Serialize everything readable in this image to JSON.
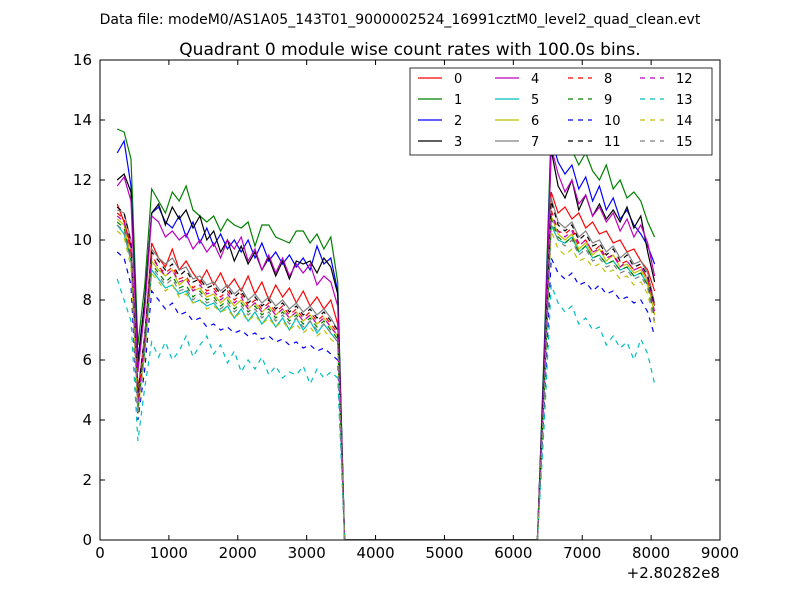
{
  "figure": {
    "suptitle": "Data file: modeM0/AS1A05_143T01_9000002524_16991cztM0_level2_quad_clean.evt"
  },
  "chart_data": {
    "type": "line",
    "title": "Quadrant 0 module wise count rates with 100.0s bins.",
    "xlabel": "",
    "ylabel": "",
    "x_offset_label": "+2.80282e8",
    "xlim": [
      0,
      9000
    ],
    "ylim": [
      0,
      16
    ],
    "xticks": [
      0,
      1000,
      2000,
      3000,
      4000,
      5000,
      6000,
      7000,
      8000,
      9000
    ],
    "yticks": [
      0,
      2,
      4,
      6,
      8,
      10,
      12,
      14,
      16
    ],
    "grid": false,
    "legend_position": "top-right",
    "legend_columns": 4,
    "x": [
      250,
      350,
      450,
      550,
      650,
      750,
      850,
      950,
      1050,
      1150,
      1250,
      1350,
      1450,
      1550,
      1650,
      1750,
      1850,
      1950,
      2050,
      2150,
      2250,
      2350,
      2450,
      2550,
      2650,
      2750,
      2850,
      2950,
      3050,
      3150,
      3250,
      3350,
      3450,
      3550,
      6350,
      6450,
      6550,
      6650,
      6750,
      6850,
      6950,
      7050,
      7150,
      7250,
      7350,
      7450,
      7550,
      7650,
      7750,
      7850,
      7950,
      8050
    ],
    "series": [
      {
        "name": "0",
        "color": "#ff0000",
        "style": "solid",
        "values": [
          11.2,
          10.6,
          9.8,
          5.0,
          6.8,
          9.9,
          9.4,
          9.1,
          9.7,
          9.0,
          9.3,
          8.9,
          8.6,
          9.0,
          8.5,
          8.9,
          8.4,
          8.7,
          8.3,
          8.8,
          8.2,
          8.6,
          8.0,
          8.5,
          8.1,
          8.4,
          7.9,
          8.3,
          7.8,
          8.1,
          7.7,
          8.0,
          7.2,
          0,
          0,
          5.5,
          11.6,
          10.9,
          11.1,
          10.7,
          10.9,
          10.4,
          10.6,
          10.2,
          10.3,
          9.9,
          10.0,
          9.6,
          9.7,
          9.3,
          9.0,
          8.3
        ]
      },
      {
        "name": "1",
        "color": "#008000",
        "style": "solid",
        "values": [
          13.7,
          13.6,
          12.7,
          6.5,
          8.5,
          11.7,
          11.3,
          10.9,
          11.6,
          11.3,
          11.8,
          11.0,
          10.8,
          10.6,
          10.8,
          10.3,
          10.7,
          10.5,
          10.4,
          10.6,
          9.8,
          10.5,
          10.5,
          10.1,
          10.0,
          9.9,
          10.3,
          10.3,
          9.9,
          10.2,
          9.7,
          10.1,
          8.6,
          0,
          0,
          6.5,
          13.8,
          13.1,
          13.2,
          13.0,
          12.5,
          12.9,
          12.3,
          12.0,
          12.5,
          11.7,
          12.0,
          11.4,
          11.6,
          11.3,
          10.6,
          10.1
        ]
      },
      {
        "name": "2",
        "color": "#0000ff",
        "style": "solid",
        "values": [
          12.9,
          13.3,
          11.8,
          6.0,
          8.0,
          10.9,
          11.1,
          10.6,
          10.4,
          10.8,
          10.1,
          10.6,
          9.9,
          10.4,
          9.8,
          10.2,
          9.7,
          10.0,
          9.6,
          10.0,
          9.4,
          9.9,
          9.3,
          9.6,
          9.2,
          9.5,
          9.1,
          9.4,
          9.0,
          9.8,
          9.2,
          9.4,
          8.3,
          0,
          0,
          6.2,
          13.4,
          12.6,
          12.2,
          12.5,
          11.7,
          12.1,
          11.3,
          11.8,
          11.0,
          11.4,
          10.7,
          11.0,
          10.5,
          10.2,
          9.8,
          9.2
        ]
      },
      {
        "name": "3",
        "color": "#000000",
        "style": "solid",
        "values": [
          12.0,
          12.2,
          11.6,
          5.9,
          8.0,
          10.9,
          11.2,
          10.5,
          11.1,
          10.7,
          11.0,
          10.4,
          10.8,
          10.0,
          10.3,
          9.6,
          10.0,
          9.3,
          9.8,
          9.2,
          9.6,
          9.0,
          9.4,
          8.8,
          9.3,
          8.7,
          9.3,
          9.2,
          9.3,
          8.9,
          9.4,
          9.1,
          8.2,
          0,
          0,
          6.0,
          13.0,
          11.8,
          11.4,
          12.0,
          11.0,
          11.5,
          10.8,
          11.2,
          10.7,
          11.0,
          10.6,
          11.1,
          10.4,
          10.8,
          9.6,
          8.6
        ]
      },
      {
        "name": "4",
        "color": "#bf00bf",
        "style": "solid",
        "values": [
          11.8,
          12.1,
          11.3,
          5.6,
          7.7,
          10.8,
          10.6,
          10.1,
          10.3,
          10.0,
          10.2,
          9.7,
          10.0,
          9.6,
          9.9,
          9.4,
          10.0,
          9.7,
          10.1,
          9.3,
          9.7,
          9.0,
          9.5,
          8.9,
          9.4,
          8.8,
          9.2,
          8.9,
          9.2,
          8.5,
          8.8,
          8.6,
          7.8,
          0,
          0,
          5.8,
          13.1,
          12.2,
          11.6,
          12.0,
          11.2,
          11.5,
          10.8,
          11.1,
          10.6,
          10.9,
          10.3,
          10.7,
          10.1,
          10.5,
          9.9,
          8.8
        ]
      },
      {
        "name": "5",
        "color": "#00bfbf",
        "style": "solid",
        "values": [
          10.5,
          10.2,
          9.3,
          4.5,
          6.3,
          9.0,
          8.7,
          8.4,
          8.5,
          8.2,
          8.3,
          7.9,
          8.0,
          7.8,
          7.9,
          7.6,
          7.8,
          7.4,
          7.7,
          7.3,
          7.6,
          7.2,
          7.5,
          7.1,
          7.4,
          7.0,
          7.4,
          7.0,
          7.3,
          6.9,
          7.2,
          6.9,
          6.6,
          0,
          0,
          5.0,
          10.5,
          10.0,
          9.9,
          10.1,
          9.6,
          9.8,
          9.4,
          9.5,
          9.2,
          9.3,
          9.0,
          9.1,
          8.8,
          8.9,
          8.5,
          7.8
        ]
      },
      {
        "name": "6",
        "color": "#bfbf00",
        "style": "solid",
        "values": [
          10.7,
          10.5,
          9.4,
          4.2,
          6.5,
          9.3,
          9.0,
          8.8,
          9.0,
          8.5,
          8.7,
          8.3,
          8.4,
          8.1,
          8.2,
          7.9,
          8.1,
          7.8,
          8.0,
          7.7,
          7.9,
          7.6,
          7.8,
          7.5,
          7.7,
          7.4,
          7.6,
          7.3,
          7.5,
          7.2,
          7.4,
          7.1,
          6.8,
          0,
          0,
          5.1,
          10.8,
          10.2,
          10.0,
          10.2,
          9.7,
          9.9,
          9.5,
          9.7,
          9.3,
          9.5,
          9.1,
          9.2,
          8.9,
          9.0,
          8.6,
          7.5
        ]
      },
      {
        "name": "7",
        "color": "#808080",
        "style": "solid",
        "values": [
          11.0,
          10.9,
          10.0,
          4.8,
          6.9,
          9.7,
          9.4,
          9.2,
          9.4,
          9.0,
          9.1,
          8.7,
          8.8,
          8.5,
          8.6,
          8.3,
          8.5,
          8.2,
          8.4,
          8.0,
          8.2,
          7.9,
          8.1,
          7.8,
          8.0,
          7.7,
          7.9,
          7.6,
          7.8,
          7.5,
          7.7,
          7.4,
          7.0,
          0,
          0,
          5.3,
          11.4,
          10.6,
          10.4,
          10.6,
          10.1,
          10.3,
          9.9,
          10.0,
          9.6,
          9.8,
          9.4,
          9.6,
          9.2,
          9.3,
          8.9,
          7.9
        ]
      },
      {
        "name": "8",
        "color": "#ff0000",
        "style": "dashed",
        "values": [
          10.9,
          10.7,
          9.6,
          4.7,
          6.6,
          9.5,
          9.1,
          8.9,
          9.1,
          8.7,
          8.8,
          8.4,
          8.6,
          8.3,
          8.4,
          8.1,
          8.3,
          8.0,
          8.2,
          7.8,
          8.0,
          7.7,
          7.9,
          7.6,
          7.8,
          7.5,
          7.7,
          7.4,
          7.6,
          7.3,
          7.5,
          7.2,
          6.9,
          0,
          0,
          5.2,
          11.0,
          10.3,
          10.2,
          10.4,
          9.9,
          10.0,
          9.6,
          9.8,
          9.4,
          9.5,
          9.2,
          9.3,
          9.0,
          9.1,
          8.7,
          7.8
        ]
      },
      {
        "name": "9",
        "color": "#008000",
        "style": "dashed",
        "values": [
          10.6,
          10.4,
          9.4,
          4.4,
          6.4,
          9.2,
          8.9,
          8.6,
          8.8,
          8.4,
          8.5,
          8.1,
          8.3,
          8.0,
          8.1,
          7.8,
          8.0,
          7.7,
          7.9,
          7.6,
          7.8,
          7.5,
          7.7,
          7.4,
          7.6,
          7.3,
          7.5,
          7.2,
          7.4,
          7.1,
          7.3,
          7.0,
          6.7,
          0,
          0,
          5.0,
          10.7,
          10.1,
          9.9,
          10.1,
          9.6,
          9.8,
          9.4,
          9.5,
          9.2,
          9.3,
          9.0,
          9.1,
          8.8,
          8.9,
          8.5,
          7.4
        ]
      },
      {
        "name": "10",
        "color": "#0000ff",
        "style": "dashed",
        "values": [
          9.6,
          9.4,
          8.5,
          4.0,
          5.7,
          8.3,
          8.0,
          7.7,
          7.9,
          7.5,
          7.6,
          7.3,
          7.4,
          7.1,
          7.2,
          7.0,
          7.1,
          6.9,
          7.0,
          6.8,
          6.9,
          6.7,
          6.8,
          6.6,
          6.7,
          6.5,
          6.6,
          6.4,
          6.5,
          6.3,
          6.4,
          6.2,
          6.0,
          0,
          0,
          4.5,
          9.4,
          8.9,
          8.7,
          8.9,
          8.5,
          8.6,
          8.3,
          8.5,
          8.2,
          8.3,
          8.0,
          8.1,
          7.9,
          8.0,
          7.6,
          6.8
        ]
      },
      {
        "name": "11",
        "color": "#000000",
        "style": "dashed",
        "values": [
          11.1,
          10.9,
          9.9,
          4.9,
          6.8,
          9.6,
          9.3,
          9.0,
          9.2,
          8.8,
          9.0,
          8.6,
          8.7,
          8.4,
          8.5,
          8.2,
          8.4,
          8.1,
          8.3,
          7.9,
          8.1,
          7.8,
          8.0,
          7.7,
          7.9,
          7.6,
          7.8,
          7.5,
          7.7,
          7.4,
          7.6,
          7.3,
          7.0,
          0,
          0,
          5.4,
          11.3,
          10.5,
          10.3,
          10.5,
          10.0,
          10.2,
          9.8,
          9.9,
          9.5,
          9.7,
          9.3,
          9.5,
          9.1,
          9.2,
          8.8,
          7.8
        ]
      },
      {
        "name": "12",
        "color": "#bf00bf",
        "style": "dashed",
        "values": [
          10.8,
          10.6,
          9.7,
          4.6,
          6.6,
          9.4,
          9.1,
          8.8,
          9.0,
          8.6,
          8.7,
          8.3,
          8.5,
          8.2,
          8.3,
          8.0,
          8.2,
          7.9,
          8.1,
          7.7,
          7.9,
          7.6,
          7.8,
          7.5,
          7.7,
          7.4,
          7.6,
          7.3,
          7.5,
          7.2,
          7.4,
          7.1,
          6.8,
          0,
          0,
          5.2,
          10.9,
          10.3,
          10.1,
          10.3,
          9.8,
          10.0,
          9.6,
          9.7,
          9.4,
          9.5,
          9.1,
          9.3,
          9.0,
          9.1,
          8.7,
          7.6
        ]
      },
      {
        "name": "13",
        "color": "#00bfbf",
        "style": "dashed",
        "values": [
          8.7,
          8.0,
          7.3,
          3.3,
          5.1,
          6.6,
          6.1,
          6.6,
          6.0,
          6.3,
          6.8,
          6.1,
          6.5,
          6.8,
          6.2,
          6.5,
          5.9,
          6.3,
          5.6,
          6.0,
          5.7,
          6.1,
          5.5,
          5.8,
          5.4,
          5.6,
          5.5,
          5.8,
          5.2,
          5.7,
          5.4,
          5.6,
          5.4,
          0,
          0,
          3.9,
          8.5,
          7.9,
          7.6,
          7.8,
          7.2,
          7.4,
          7.0,
          7.1,
          6.5,
          6.8,
          6.4,
          6.6,
          6.0,
          6.7,
          6.2,
          5.2
        ]
      },
      {
        "name": "14",
        "color": "#bfbf00",
        "style": "dashed",
        "values": [
          10.3,
          10.1,
          9.1,
          4.2,
          6.1,
          8.9,
          8.6,
          8.3,
          8.5,
          8.1,
          8.2,
          7.9,
          8.0,
          7.7,
          7.8,
          7.6,
          7.7,
          7.4,
          7.6,
          7.3,
          7.5,
          7.2,
          7.4,
          7.1,
          7.3,
          7.0,
          7.2,
          6.9,
          7.1,
          6.8,
          7.0,
          6.7,
          6.5,
          0,
          0,
          4.9,
          10.3,
          9.7,
          9.5,
          9.7,
          9.3,
          9.4,
          9.1,
          9.2,
          8.9,
          9.0,
          8.7,
          8.8,
          8.5,
          8.6,
          8.2,
          7.2
        ]
      },
      {
        "name": "15",
        "color": "#808080",
        "style": "dashed",
        "values": [
          10.5,
          10.3,
          9.3,
          4.3,
          6.3,
          9.1,
          8.8,
          8.5,
          8.7,
          8.3,
          8.4,
          8.0,
          8.2,
          7.9,
          8.0,
          7.7,
          7.9,
          7.6,
          7.8,
          7.5,
          7.7,
          7.4,
          7.6,
          7.3,
          7.5,
          7.2,
          7.4,
          7.1,
          7.3,
          7.0,
          7.2,
          6.9,
          6.6,
          0,
          0,
          5.0,
          10.6,
          10.0,
          9.8,
          10.0,
          9.5,
          9.7,
          9.3,
          9.4,
          9.1,
          9.2,
          8.9,
          9.0,
          8.7,
          8.8,
          8.4,
          7.3
        ]
      }
    ]
  }
}
